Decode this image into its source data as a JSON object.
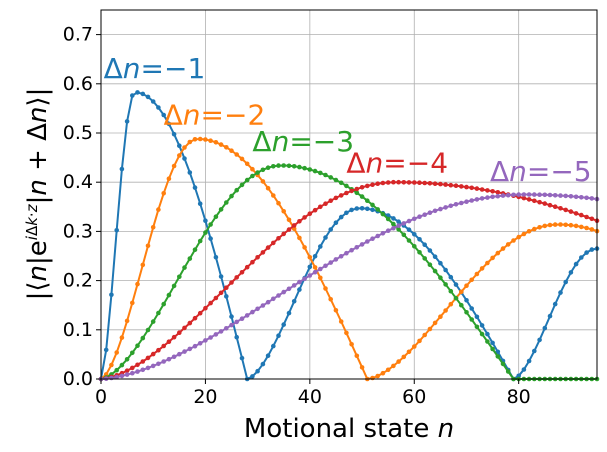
{
  "chart_data": {
    "type": "line",
    "xlabel": "Motional state n",
    "ylabel": "|⟨n|e^{iΔk·z}|n+Δn⟩|",
    "xlim": [
      0,
      95
    ],
    "ylim": [
      0,
      0.75
    ],
    "x_ticks": [
      "0",
      "20",
      "40",
      "60",
      "80"
    ],
    "y_ticks": [
      "0.0",
      "0.1",
      "0.2",
      "0.3",
      "0.4",
      "0.5",
      "0.6",
      "0.7"
    ],
    "grid": true,
    "marker": "dot",
    "series": [
      {
        "name": "Δn=−1",
        "color": "#1f77b4",
        "zeros": [
          28,
          79
        ],
        "peaks": [
          [
            6.5,
            0.583
          ],
          [
            49.5,
            0.347
          ],
          [
            95,
            0.265
          ]
        ]
      },
      {
        "name": "Δn=−2",
        "color": "#ff7f0e",
        "zeros": [
          51
        ],
        "peaks": [
          [
            18.5,
            0.488
          ],
          [
            87.5,
            0.314
          ]
        ]
      },
      {
        "name": "Δn=−3",
        "color": "#2ca02c",
        "zeros": [
          79
        ],
        "peaks": [
          [
            34.5,
            0.434
          ]
        ]
      },
      {
        "name": "Δn=−4",
        "color": "#d62728",
        "zeros": [],
        "peaks": [
          [
            56.5,
            0.4
          ]
        ]
      },
      {
        "name": "Δn=−5",
        "color": "#9467bd",
        "zeros": [],
        "peaks": [
          [
            81.5,
            0.375
          ]
        ]
      }
    ],
    "series_labels": [
      {
        "name": "Δn=−1",
        "color": "#1f77b4",
        "x": 0.5,
        "y": 0.612
      },
      {
        "name": "Δn=−2",
        "color": "#ff7f0e",
        "x": 12,
        "y": 0.517
      },
      {
        "name": "Δn=−3",
        "color": "#2ca02c",
        "x": 29,
        "y": 0.463
      },
      {
        "name": "Δn=−4",
        "color": "#d62728",
        "x": 47,
        "y": 0.42
      },
      {
        "name": "Δn=−5",
        "color": "#9467bd",
        "x": 74.5,
        "y": 0.402
      }
    ]
  }
}
